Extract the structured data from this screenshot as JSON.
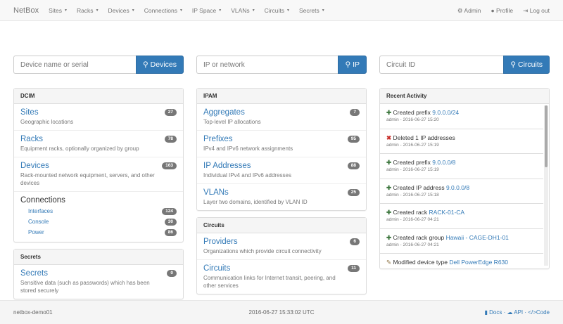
{
  "nav": {
    "brand": "NetBox",
    "menus": [
      "Sites",
      "Racks",
      "Devices",
      "Connections",
      "IP Space",
      "VLANs",
      "Circuits",
      "Secrets"
    ],
    "admin": "Admin",
    "profile": "Profile",
    "logout": "Log out"
  },
  "search": {
    "devices": {
      "placeholder": "Device name or serial",
      "button": "Devices"
    },
    "ip": {
      "placeholder": "IP or network",
      "button": "IP"
    },
    "circuits": {
      "placeholder": "Circuit ID",
      "button": "Circuits"
    }
  },
  "dcim": {
    "title": "DCIM",
    "items": [
      {
        "label": "Sites",
        "desc": "Geographic locations",
        "count": "27"
      },
      {
        "label": "Racks",
        "desc": "Equipment racks, optionally organized by group",
        "count": "78"
      },
      {
        "label": "Devices",
        "desc": "Rack-mounted network equipment, servers, and other devices",
        "count": "163"
      }
    ],
    "connections": {
      "label": "Connections",
      "items": [
        {
          "label": "Interfaces",
          "count": "124"
        },
        {
          "label": "Console",
          "count": "30"
        },
        {
          "label": "Power",
          "count": "86"
        }
      ]
    }
  },
  "secrets": {
    "title": "Secrets",
    "items": [
      {
        "label": "Secrets",
        "desc": "Sensitive data (such as passwords) which has been stored securely",
        "count": "0"
      }
    ]
  },
  "ipam": {
    "title": "IPAM",
    "items": [
      {
        "label": "Aggregates",
        "desc": "Top-level IP allocations",
        "count": "7"
      },
      {
        "label": "Prefixes",
        "desc": "IPv4 and IPv6 network assignments",
        "count": "95"
      },
      {
        "label": "IP Addresses",
        "desc": "Individual IPv4 and IPv6 addresses",
        "count": "88"
      },
      {
        "label": "VLANs",
        "desc": "Layer two domains, identified by VLAN ID",
        "count": "25"
      }
    ]
  },
  "circuits": {
    "title": "Circuits",
    "items": [
      {
        "label": "Providers",
        "desc": "Organizations which provide circuit connectivity",
        "count": "6"
      },
      {
        "label": "Circuits",
        "desc": "Communication links for Internet transit, peering, and other services",
        "count": "11"
      }
    ]
  },
  "activity": {
    "title": "Recent Activity",
    "items": [
      {
        "icon": "plus",
        "action": "Created prefix",
        "link": "9.0.0.0/24",
        "meta": "admin - 2016-06-27 15:20"
      },
      {
        "icon": "x",
        "action": "Deleted 1 IP addresses",
        "link": "",
        "meta": "admin - 2016-06-27 15:19"
      },
      {
        "icon": "plus",
        "action": "Created prefix",
        "link": "9.0.0.0/8",
        "meta": "admin - 2016-06-27 15:19"
      },
      {
        "icon": "plus",
        "action": "Created IP address",
        "link": "9.0.0.0/8",
        "meta": "admin - 2016-06-27 15:18"
      },
      {
        "icon": "plus",
        "action": "Created rack",
        "link": "RACK-01-CA",
        "meta": "admin - 2016-06-27 04:21"
      },
      {
        "icon": "plus",
        "action": "Created rack group",
        "link": "Hawaii - CAGE-DH1-01",
        "meta": "admin - 2016-06-27 04:21"
      },
      {
        "icon": "pencil",
        "action": "Modified device type",
        "link": "Dell PowerEdge R630",
        "meta": ""
      }
    ]
  },
  "footer": {
    "host": "netbox-demo01",
    "time": "2016-06-27 15:33:02 UTC",
    "docs": "Docs",
    "api": "API",
    "code": "Code",
    "sep": "·"
  }
}
